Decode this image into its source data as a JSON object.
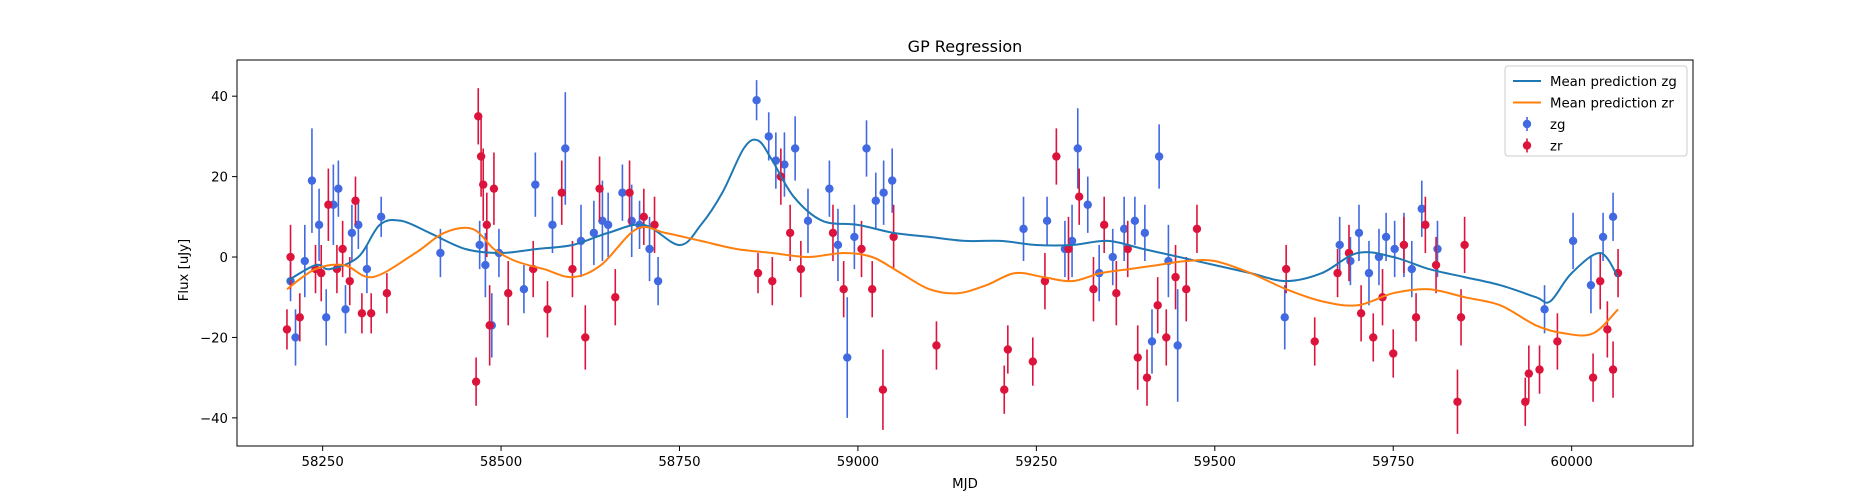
{
  "chart_data": {
    "type": "scatter",
    "title": "GP Regression",
    "xlabel": "MJD",
    "ylabel": "Flux [uJy]",
    "xlim": [
      58130,
      60170
    ],
    "ylim": [
      -47,
      49
    ],
    "xticks": [
      58250,
      58500,
      58750,
      59000,
      59250,
      59500,
      59750,
      60000
    ],
    "yticks": [
      -40,
      -20,
      0,
      20,
      40
    ],
    "grid": false,
    "legend_position": "top-right",
    "colors": {
      "zg_line": "#1f77b4",
      "zr_line": "#ff7f0e",
      "zg_points": "#4169e1",
      "zr_points": "#dc143c"
    },
    "lines": [
      {
        "name": "Mean prediction zg",
        "x": [
          58200,
          58240,
          58260,
          58300,
          58330,
          58360,
          58400,
          58450,
          58500,
          58550,
          58600,
          58650,
          58700,
          58750,
          58780,
          58810,
          58840,
          58860,
          58880,
          58910,
          58950,
          59000,
          59050,
          59100,
          59150,
          59200,
          59250,
          59300,
          59350,
          59400,
          59450,
          59500,
          59550,
          59600,
          59650,
          59700,
          59750,
          59800,
          59850,
          59900,
          59950,
          59970,
          60000,
          60040,
          60065
        ],
        "y": [
          -6,
          -2,
          -3,
          0,
          8,
          9,
          6,
          2,
          1,
          2,
          3,
          6,
          8,
          3,
          8,
          16,
          27,
          29,
          24,
          15,
          9,
          8,
          6,
          5,
          4,
          4,
          3,
          3,
          4,
          2,
          0,
          -2,
          -4,
          -6,
          -4,
          1,
          0,
          -3,
          -5,
          -7,
          -10,
          -11,
          -4,
          1,
          -5
        ]
      },
      {
        "name": "Mean prediction zr",
        "x": [
          58200,
          58240,
          58280,
          58320,
          58380,
          58420,
          58460,
          58490,
          58520,
          58560,
          58600,
          58640,
          58690,
          58730,
          58780,
          58830,
          58880,
          58930,
          58980,
          59020,
          59060,
          59100,
          59140,
          59180,
          59220,
          59260,
          59300,
          59340,
          59380,
          59420,
          59460,
          59500,
          59550,
          59600,
          59650,
          59700,
          59750,
          59800,
          59850,
          59900,
          59950,
          59990,
          60030,
          60065
        ],
        "y": [
          -8,
          -3,
          -2,
          -5,
          1,
          6,
          7,
          2,
          -1,
          -3,
          -5,
          -2,
          7,
          6,
          4,
          2,
          1,
          0,
          1,
          0,
          -4,
          -8,
          -9,
          -7,
          -4,
          -5,
          -6,
          -4,
          -3,
          -2,
          -1,
          -1,
          -4,
          -8,
          -11,
          -12,
          -9,
          -8,
          -10,
          -12,
          -17,
          -19,
          -19,
          -13
        ]
      }
    ],
    "points": [
      {
        "name": "zg",
        "x": [
          58205,
          58212,
          58225,
          58235,
          58245,
          58255,
          58265,
          58272,
          58282,
          58291,
          58300,
          58312,
          58332,
          58415,
          58470,
          58478,
          58487,
          58497,
          58532,
          58548,
          58572,
          58590,
          58612,
          58630,
          58642,
          58650,
          58670,
          58683,
          58694,
          58708,
          58720,
          58858,
          58875,
          58885,
          58897,
          58912,
          58930,
          58960,
          58972,
          58985,
          58995,
          59012,
          59025,
          59036,
          59048,
          59232,
          59265,
          59290,
          59300,
          59308,
          59322,
          59338,
          59357,
          59373,
          59388,
          59402,
          59412,
          59422,
          59435,
          59448,
          59598,
          59675,
          59690,
          59702,
          59716,
          59730,
          59740,
          59752,
          59765,
          59776,
          59790,
          59812,
          59962,
          60002,
          60027,
          60044,
          60058
        ],
        "y": [
          -6,
          -20,
          -1,
          19,
          8,
          -15,
          13,
          17,
          -13,
          6,
          8,
          -3,
          10,
          1,
          3,
          -2,
          -17,
          1,
          -8,
          18,
          8,
          27,
          4,
          6,
          9,
          8,
          16,
          9,
          8,
          2,
          -6,
          39,
          30,
          24,
          23,
          27,
          9,
          17,
          3,
          -25,
          5,
          27,
          14,
          16,
          19,
          7,
          9,
          2,
          4,
          27,
          13,
          -4,
          0,
          7,
          9,
          6,
          -21,
          25,
          -1,
          -22,
          -15,
          3,
          -1,
          6,
          -4,
          0,
          5,
          2,
          3,
          -3,
          12,
          2,
          -13,
          4,
          -7,
          5,
          10
        ],
        "err": [
          5,
          7,
          9,
          13,
          9,
          7,
          10,
          7,
          6,
          7,
          6,
          6,
          5,
          6,
          6,
          8,
          8,
          6,
          6,
          8,
          7,
          14,
          9,
          8,
          10,
          8,
          7,
          9,
          6,
          8,
          6,
          5,
          6,
          7,
          8,
          8,
          8,
          7,
          9,
          15,
          8,
          7,
          7,
          8,
          8,
          8,
          6,
          7,
          9,
          10,
          7,
          7,
          7,
          8,
          6,
          7,
          8,
          8,
          9,
          14,
          8,
          7,
          6,
          7,
          8,
          7,
          6,
          7,
          8,
          7,
          7,
          7,
          6,
          7,
          7,
          6,
          6
        ]
      },
      {
        "name": "zr",
        "x": [
          58200,
          58205,
          58218,
          58240,
          58248,
          58258,
          58270,
          58278,
          58288,
          58296,
          58305,
          58318,
          58340,
          58465,
          58468,
          58472,
          58475,
          58480,
          58484,
          58490,
          58510,
          58545,
          58565,
          58585,
          58600,
          58618,
          58638,
          58660,
          58680,
          58700,
          58715,
          58860,
          58880,
          58892,
          58905,
          58920,
          58965,
          58980,
          59005,
          59020,
          59035,
          59050,
          59110,
          59205,
          59210,
          59245,
          59262,
          59278,
          59295,
          59310,
          59330,
          59345,
          59362,
          59378,
          59392,
          59405,
          59420,
          59432,
          59445,
          59460,
          59475,
          59600,
          59640,
          59672,
          59688,
          59705,
          59722,
          59735,
          59750,
          59765,
          59782,
          59795,
          59810,
          59840,
          59845,
          59850,
          59935,
          59940,
          59955,
          59980,
          60030,
          60040,
          60050,
          60058,
          60065
        ],
        "y": [
          -18,
          0,
          -15,
          -3,
          -4,
          13,
          -3,
          2,
          -6,
          14,
          -14,
          -14,
          -9,
          -31,
          35,
          25,
          18,
          8,
          -17,
          17,
          -9,
          -3,
          -13,
          16,
          -3,
          -20,
          17,
          -10,
          16,
          10,
          8,
          -4,
          -6,
          20,
          6,
          -3,
          6,
          -8,
          2,
          -8,
          -33,
          5,
          -22,
          -33,
          -23,
          -26,
          -6,
          25,
          2,
          15,
          -8,
          8,
          -9,
          2,
          -25,
          -30,
          -12,
          -20,
          -5,
          -8,
          7,
          -3,
          -21,
          -4,
          1,
          -14,
          -20,
          -10,
          -24,
          3,
          -15,
          8,
          -2,
          -36,
          -15,
          3,
          -36,
          -29,
          -28,
          -21,
          -30,
          -6,
          -18,
          -28,
          -4
        ],
        "err": [
          5,
          8,
          6,
          6,
          7,
          9,
          6,
          7,
          6,
          6,
          5,
          5,
          5,
          6,
          7,
          10,
          9,
          8,
          10,
          9,
          8,
          7,
          7,
          8,
          7,
          8,
          8,
          7,
          8,
          7,
          7,
          5,
          6,
          7,
          7,
          7,
          7,
          7,
          7,
          7,
          10,
          8,
          6,
          6,
          6,
          6,
          7,
          7,
          8,
          7,
          8,
          7,
          8,
          7,
          8,
          7,
          7,
          7,
          8,
          8,
          6,
          6,
          6,
          6,
          7,
          7,
          6,
          7,
          6,
          7,
          6,
          7,
          7,
          8,
          7,
          7,
          6,
          7,
          6,
          7,
          6,
          7,
          7,
          7,
          6
        ],
        "err_note": ""
      }
    ]
  }
}
